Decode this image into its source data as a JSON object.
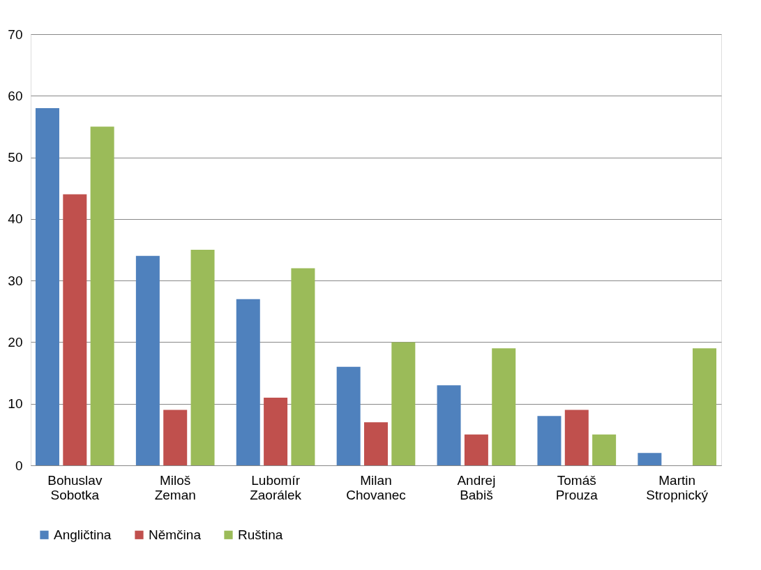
{
  "chart_data": {
    "type": "bar",
    "categories": [
      "Bohuslav Sobotka",
      "Miloš Zeman",
      "Lubomír Zaorálek",
      "Milan Chovanec",
      "Andrej Babiš",
      "Tomáš Prouza",
      "Martin Stropnický"
    ],
    "series": [
      {
        "name": "Angličtina",
        "color": "#4f81bd",
        "values": [
          58,
          34,
          27,
          16,
          13,
          8,
          2
        ]
      },
      {
        "name": "Němčina",
        "color": "#c0504d",
        "values": [
          44,
          9,
          11,
          7,
          5,
          9,
          0
        ]
      },
      {
        "name": "Ruština",
        "color": "#9bbb59",
        "values": [
          55,
          35,
          32,
          20,
          19,
          5,
          19
        ]
      }
    ],
    "ylim": [
      0,
      70
    ],
    "yticks": [
      0,
      10,
      20,
      30,
      40,
      50,
      60,
      70
    ],
    "grid": "y",
    "legend": "bottom"
  }
}
